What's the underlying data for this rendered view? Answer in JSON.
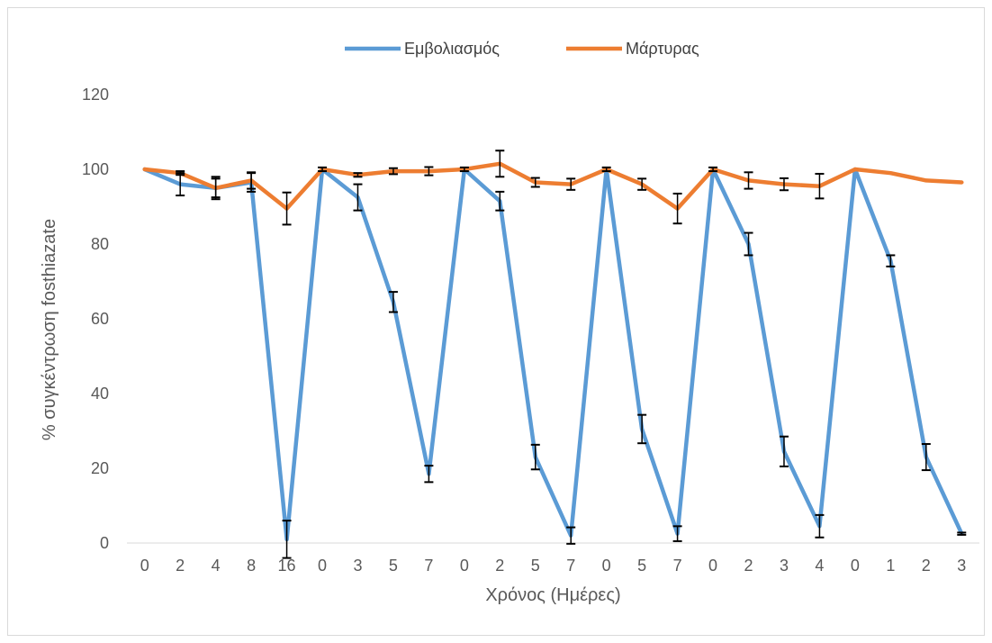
{
  "chart_data": {
    "type": "line",
    "xlabel": "Χρόνος (Ημέρες)",
    "ylabel": "% συγκέντρωση fosthiazate",
    "ylim": [
      0,
      120
    ],
    "yticks": [
      0,
      20,
      40,
      60,
      80,
      100,
      120
    ],
    "grid": false,
    "legend_position": "top",
    "categories": [
      "0",
      "2",
      "4",
      "8",
      "16",
      "0",
      "3",
      "5",
      "7",
      "0",
      "2",
      "5",
      "7",
      "0",
      "5",
      "7",
      "0",
      "2",
      "3",
      "4",
      "0",
      "1",
      "2",
      "3"
    ],
    "series": [
      {
        "name": "Εμβολιασμός",
        "color": "#5b9bd5",
        "values": [
          100,
          96,
          95,
          96.5,
          1,
          100,
          92.5,
          64.5,
          18.5,
          100,
          91.5,
          23,
          2,
          100,
          30.5,
          2.5,
          100,
          80,
          24.5,
          4.5,
          100,
          75.5,
          23,
          2.5
        ],
        "error": [
          0,
          3,
          2.5,
          2.5,
          5,
          0,
          3.5,
          2.7,
          2.2,
          0,
          2.5,
          3.3,
          2.2,
          0,
          3.8,
          2,
          0,
          3,
          4,
          3,
          0,
          1.5,
          3.5,
          0.3
        ]
      },
      {
        "name": "Μάρτυρας",
        "color": "#ed7d31",
        "values": [
          100,
          99,
          95,
          97,
          89.5,
          100,
          98.5,
          99.5,
          99.5,
          100,
          101.5,
          96.5,
          96,
          100,
          96,
          89.5,
          100,
          97,
          96,
          95.5,
          100,
          99,
          97,
          96.5
        ],
        "error": [
          0,
          0.5,
          3,
          2.2,
          4.3,
          0.5,
          0.5,
          0.8,
          1.1,
          0.5,
          3.5,
          1.2,
          1.5,
          0.5,
          1.5,
          4,
          0.5,
          2.2,
          1.6,
          3.3,
          0,
          0,
          0,
          0
        ]
      }
    ]
  }
}
